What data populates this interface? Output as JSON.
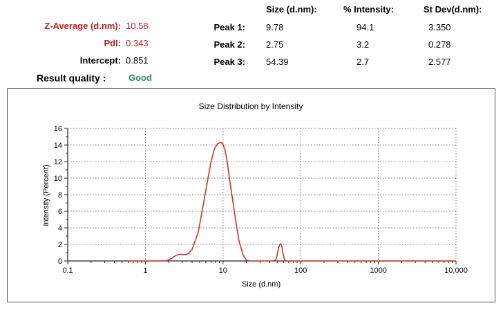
{
  "summary": {
    "z_average_label": "Z-Average (d.nm):",
    "z_average_value": "10.58",
    "pdi_label": "PdI:",
    "pdi_value": "0.343",
    "intercept_label": "Intercept:",
    "intercept_value": "0.851",
    "result_label": "Result quality :",
    "result_value": "Good"
  },
  "peaks": {
    "headers": [
      "Size (d.nm):",
      "% Intensity:",
      "St Dev(d.nm):"
    ],
    "rows": [
      {
        "label": "Peak 1:",
        "size": "9.78",
        "intensity": "94.1",
        "stdev": "3.350"
      },
      {
        "label": "Peak 2:",
        "size": "2.75",
        "intensity": "3.2",
        "stdev": "0.278"
      },
      {
        "label": "Peak 3:",
        "size": "54.39",
        "intensity": "2.7",
        "stdev": "2.577"
      }
    ]
  },
  "colors": {
    "summary_red": "#b22222",
    "good_green": "#2e8b57",
    "curve": "#c0392b"
  },
  "chart_data": {
    "type": "line",
    "title": "Size Distribution by Intensity",
    "xlabel": "Size (d.nm)",
    "ylabel": "Intensity (Percent)",
    "x_scale": "log",
    "xlim": [
      0.1,
      10000
    ],
    "ylim": [
      0,
      16
    ],
    "x_ticks": [
      0.1,
      1,
      10,
      100,
      1000,
      10000
    ],
    "x_tick_labels": [
      "0.1",
      "1",
      "10",
      "100",
      "1000",
      "10,000"
    ],
    "y_ticks": [
      0,
      2,
      4,
      6,
      8,
      10,
      12,
      14,
      16
    ],
    "y_tick_labels": [
      "0",
      "2",
      "4",
      "6",
      "8",
      "10",
      "12",
      "14",
      "16"
    ],
    "grid": true,
    "series": [
      {
        "x": [
          0.6,
          1.5,
          1.9,
          2.2,
          2.5,
          2.8,
          3.2,
          3.6,
          4.0,
          4.8,
          5.5,
          6.3,
          7.0,
          7.8,
          8.6,
          9.4,
          10.0,
          10.6,
          11.3,
          12.0,
          13.0,
          14.5,
          16.0,
          18.0,
          20.0,
          22.0,
          24.0,
          30.0,
          40.0,
          45.0,
          48.0,
          50.0,
          52.0,
          54.0,
          55.5,
          57.0,
          59.0,
          61.0,
          63.0,
          66.0,
          100.0,
          1000.0,
          10000.0
        ],
        "y": [
          0,
          0,
          0.05,
          0.35,
          0.7,
          0.8,
          0.75,
          0.9,
          1.4,
          3.5,
          6.5,
          9.6,
          12.0,
          13.6,
          14.2,
          14.3,
          14.1,
          13.4,
          12.0,
          10.2,
          8.0,
          5.0,
          2.5,
          0.8,
          0.1,
          0,
          0,
          0,
          0,
          0,
          0.2,
          0.8,
          1.6,
          2.0,
          2.1,
          1.8,
          1.0,
          0.4,
          0.05,
          0,
          0,
          0,
          0
        ]
      }
    ]
  }
}
